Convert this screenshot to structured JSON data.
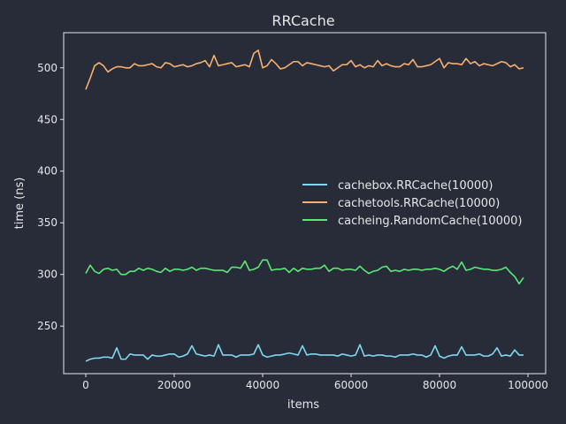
{
  "chart_data": {
    "type": "line",
    "title": "RRCache",
    "xlabel": "items",
    "ylabel": "time (ns)",
    "xlim": [
      -5000,
      104000
    ],
    "ylim": [
      204,
      534
    ],
    "xticks": [
      0,
      20000,
      40000,
      60000,
      80000,
      100000
    ],
    "yticks": [
      250,
      300,
      350,
      400,
      450,
      500
    ],
    "legend_position": "center-right",
    "grid": false,
    "background": "#282c39",
    "axis_color": "#e6e6e6",
    "x": [
      0,
      1000,
      2000,
      3000,
      4000,
      5000,
      6000,
      7000,
      8000,
      9000,
      10000,
      11000,
      12000,
      13000,
      14000,
      15000,
      16000,
      17000,
      18000,
      19000,
      20000,
      21000,
      22000,
      23000,
      24000,
      25000,
      26000,
      27000,
      28000,
      29000,
      30000,
      31000,
      32000,
      33000,
      34000,
      35000,
      36000,
      37000,
      38000,
      39000,
      40000,
      41000,
      42000,
      43000,
      44000,
      45000,
      46000,
      47000,
      48000,
      49000,
      50000,
      51000,
      52000,
      53000,
      54000,
      55000,
      56000,
      57000,
      58000,
      59000,
      60000,
      61000,
      62000,
      63000,
      64000,
      65000,
      66000,
      67000,
      68000,
      69000,
      70000,
      71000,
      72000,
      73000,
      74000,
      75000,
      76000,
      77000,
      78000,
      79000,
      80000,
      81000,
      82000,
      83000,
      84000,
      85000,
      86000,
      87000,
      88000,
      89000,
      90000,
      91000,
      92000,
      93000,
      94000,
      95000,
      96000,
      97000,
      98000,
      99000
    ],
    "series": [
      {
        "name": "cachebox.RRCache(10000)",
        "color": "#7fd8f0",
        "values": [
          216,
          218,
          219,
          219,
          220,
          220,
          219,
          229,
          218,
          218,
          223,
          222,
          222,
          222,
          218,
          222,
          221,
          221,
          222,
          223,
          223,
          220,
          221,
          223,
          231,
          223,
          222,
          221,
          222,
          221,
          232,
          222,
          222,
          222,
          220,
          222,
          222,
          222,
          223,
          232,
          222,
          220,
          221,
          222,
          222,
          223,
          224,
          223,
          222,
          231,
          222,
          223,
          223,
          222,
          222,
          222,
          222,
          221,
          223,
          222,
          221,
          222,
          232,
          221,
          222,
          221,
          222,
          222,
          221,
          221,
          220,
          222,
          222,
          222,
          223,
          222,
          222,
          220,
          222,
          231,
          221,
          219,
          221,
          222,
          222,
          230,
          222,
          222,
          222,
          223,
          221,
          221,
          223,
          229,
          221,
          222,
          221,
          227,
          222,
          222
        ]
      },
      {
        "name": "cachetools.RRCache(10000)",
        "color": "#f5b070",
        "values": [
          479,
          490,
          502,
          505,
          502,
          496,
          499,
          501,
          501,
          500,
          500,
          504,
          502,
          502,
          503,
          504,
          501,
          500,
          505,
          504,
          501,
          502,
          503,
          501,
          502,
          504,
          505,
          507,
          501,
          512,
          502,
          503,
          504,
          505,
          501,
          502,
          503,
          501,
          514,
          517,
          500,
          502,
          508,
          504,
          499,
          500,
          503,
          506,
          506,
          502,
          505,
          504,
          503,
          502,
          501,
          502,
          497,
          500,
          503,
          503,
          507,
          501,
          503,
          500,
          502,
          501,
          507,
          502,
          504,
          502,
          501,
          501,
          504,
          503,
          508,
          501,
          501,
          502,
          503,
          506,
          509,
          500,
          505,
          504,
          504,
          503,
          509,
          504,
          506,
          502,
          504,
          503,
          502,
          504,
          506,
          505,
          501,
          503,
          499,
          500
        ]
      },
      {
        "name": "cacheing.RandomCache(10000)",
        "color": "#5ae876",
        "values": [
          301,
          309,
          303,
          301,
          305,
          306,
          304,
          305,
          300,
          300,
          303,
          303,
          306,
          304,
          306,
          305,
          303,
          302,
          306,
          303,
          305,
          305,
          304,
          305,
          307,
          304,
          306,
          306,
          305,
          304,
          304,
          304,
          302,
          307,
          307,
          306,
          313,
          304,
          305,
          307,
          314,
          314,
          304,
          305,
          305,
          306,
          302,
          306,
          303,
          306,
          305,
          305,
          306,
          306,
          309,
          303,
          306,
          306,
          304,
          305,
          305,
          304,
          308,
          304,
          301,
          303,
          304,
          307,
          308,
          303,
          304,
          303,
          305,
          304,
          305,
          305,
          304,
          305,
          305,
          306,
          305,
          303,
          306,
          308,
          305,
          312,
          304,
          305,
          307,
          306,
          305,
          305,
          304,
          304,
          305,
          307,
          302,
          298,
          291,
          297
        ]
      }
    ]
  }
}
